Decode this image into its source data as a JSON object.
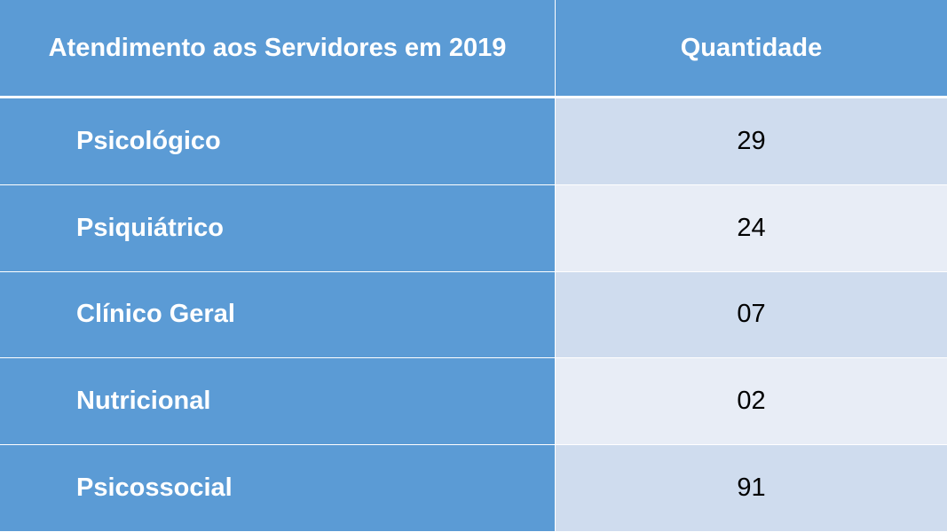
{
  "table": {
    "headers": [
      "Atendimento aos Servidores em 2019",
      "Quantidade"
    ],
    "rows": [
      {
        "label": "Psicológico",
        "value": "29"
      },
      {
        "label": "Psiquiátrico",
        "value": "24"
      },
      {
        "label": "Clínico Geral",
        "value": "07"
      },
      {
        "label": "Nutricional",
        "value": "02"
      },
      {
        "label": "Psicossocial",
        "value": "91"
      }
    ]
  },
  "colors": {
    "header_bg": "#5b9bd5",
    "label_bg": "#5b9bd5",
    "value_bg_odd": "#cfdcee",
    "value_bg_even": "#e8edf6",
    "header_text": "#ffffff",
    "value_text": "#000000"
  }
}
